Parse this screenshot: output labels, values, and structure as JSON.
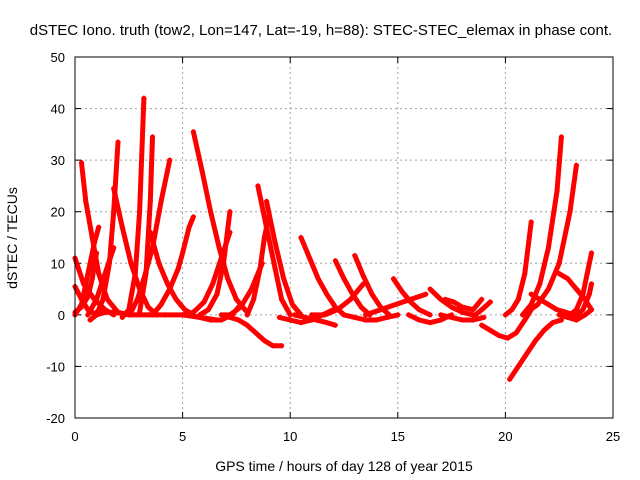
{
  "chart_data": {
    "type": "scatter",
    "title": "dSTEC Iono. truth (tow2, Lon=147, Lat=-19, h=88): STEC-STEC_elemax in phase cont.",
    "xlabel": "GPS time / hours of day 128 of year 2015",
    "ylabel": "dSTEC  / TECUs",
    "xlim": [
      0,
      25
    ],
    "ylim": [
      -20,
      50
    ],
    "xticks": [
      0,
      5,
      10,
      15,
      20,
      25
    ],
    "yticks": [
      -20,
      -10,
      0,
      10,
      20,
      30,
      40,
      50
    ],
    "xtick_labels": [
      "0",
      "5",
      "10",
      "15",
      "20",
      "25"
    ],
    "ytick_labels": [
      "-20",
      "-10",
      "0",
      "10",
      "20",
      "30",
      "40",
      "50"
    ],
    "grid": true,
    "legend": "none",
    "marker": "plus",
    "color": "#ff0000",
    "series": [
      {
        "x": [
          0.0,
          0.3,
          0.6,
          1.0,
          1.4
        ],
        "y": [
          5.5,
          3.0,
          1.0,
          0.0,
          0.5
        ]
      },
      {
        "x": [
          0.0,
          0.4,
          0.9,
          1.4,
          1.8
        ],
        "y": [
          11.0,
          6.0,
          3.0,
          1.0,
          0.0
        ]
      },
      {
        "x": [
          0.0,
          0.3,
          0.6,
          0.8,
          1.0
        ],
        "y": [
          0.5,
          1.5,
          3.5,
          7.0,
          12.0
        ]
      },
      {
        "x": [
          0.3,
          0.5,
          0.8,
          1.1,
          1.5,
          2.0,
          2.5
        ],
        "y": [
          29.5,
          22.0,
          15.0,
          8.0,
          3.0,
          0.5,
          0.0
        ]
      },
      {
        "x": [
          0.0,
          0.3,
          0.5,
          0.7,
          0.9,
          1.1
        ],
        "y": [
          0.0,
          2.0,
          6.0,
          10.0,
          14.0,
          17.0
        ]
      },
      {
        "x": [
          0.7,
          1.0,
          1.3,
          1.6,
          1.8,
          2.0
        ],
        "y": [
          -1.0,
          0.0,
          3.0,
          10.0,
          20.0,
          33.5
        ]
      },
      {
        "x": [
          0.6,
          1.0,
          1.4,
          1.8
        ],
        "y": [
          0.0,
          3.0,
          8.0,
          13.0
        ]
      },
      {
        "x": [
          1.8,
          2.2,
          2.6,
          3.0,
          3.4,
          3.8
        ],
        "y": [
          24.5,
          17.0,
          10.0,
          5.0,
          1.5,
          0.0
        ]
      },
      {
        "x": [
          1.0,
          1.8,
          2.6,
          3.4,
          4.2,
          5.0,
          5.8,
          6.6
        ],
        "y": [
          0.5,
          0.5,
          0.0,
          0.0,
          0.0,
          0.0,
          -0.5,
          -1.0
        ]
      },
      {
        "x": [
          2.2,
          2.5,
          2.8,
          3.0,
          3.2
        ],
        "y": [
          -0.5,
          1.0,
          8.0,
          20.0,
          42.0
        ]
      },
      {
        "x": [
          3.0,
          3.3,
          3.5,
          3.6
        ],
        "y": [
          0.5,
          8.0,
          22.0,
          34.5
        ]
      },
      {
        "x": [
          3.5,
          3.9,
          4.3,
          4.7,
          5.1,
          5.5
        ],
        "y": [
          16.0,
          10.0,
          6.0,
          3.0,
          1.0,
          0.0
        ]
      },
      {
        "x": [
          3.6,
          4.0,
          4.4,
          4.8,
          5.0,
          5.3,
          5.5
        ],
        "y": [
          0.0,
          2.0,
          5.0,
          9.0,
          12.0,
          17.0,
          19.0
        ]
      },
      {
        "x": [
          2.6,
          2.9,
          3.2,
          3.6,
          4.0,
          4.4
        ],
        "y": [
          0.5,
          3.0,
          7.0,
          13.0,
          22.0,
          30.0
        ]
      },
      {
        "x": [
          5.5,
          5.9,
          6.3,
          6.7,
          7.1,
          7.5,
          8.0
        ],
        "y": [
          35.5,
          28.0,
          20.0,
          13.0,
          7.0,
          3.0,
          0.5
        ]
      },
      {
        "x": [
          5.8,
          6.2,
          6.6,
          6.9,
          7.2
        ],
        "y": [
          0.0,
          1.0,
          4.0,
          10.0,
          20.0
        ]
      },
      {
        "x": [
          5.3,
          5.8,
          6.3,
          6.8,
          7.3,
          7.7
        ],
        "y": [
          0.0,
          -0.5,
          -1.0,
          -1.0,
          0.0,
          2.0
        ]
      },
      {
        "x": [
          5.0,
          5.5,
          6.0,
          6.4,
          6.8,
          7.2
        ],
        "y": [
          0.0,
          0.5,
          2.5,
          6.0,
          11.0,
          16.0
        ]
      },
      {
        "x": [
          6.8,
          7.2,
          7.7,
          8.2,
          8.7
        ],
        "y": [
          0.0,
          0.0,
          1.5,
          5.0,
          10.0
        ]
      },
      {
        "x": [
          7.2,
          7.6,
          8.0,
          8.4,
          8.8,
          9.2,
          9.6
        ],
        "y": [
          -0.5,
          -1.0,
          -2.0,
          -3.5,
          -5.0,
          -6.0,
          -6.0
        ]
      },
      {
        "x": [
          8.5,
          8.9,
          9.3,
          9.6,
          10.0
        ],
        "y": [
          25.0,
          17.0,
          9.0,
          3.0,
          0.0
        ]
      },
      {
        "x": [
          8.9,
          9.3,
          9.7,
          10.1,
          10.5
        ],
        "y": [
          22.0,
          14.0,
          7.0,
          2.0,
          0.0
        ]
      },
      {
        "x": [
          8.0,
          8.3,
          8.6,
          8.8,
          9.0
        ],
        "y": [
          0.0,
          3.0,
          9.0,
          15.0,
          19.0
        ]
      },
      {
        "x": [
          9.5,
          10.0,
          10.5,
          11.0,
          11.5,
          12.0
        ],
        "y": [
          -0.5,
          -1.0,
          -1.5,
          -1.0,
          0.0,
          1.0
        ]
      },
      {
        "x": [
          10.5,
          10.9,
          11.3,
          11.7,
          12.1,
          12.5
        ],
        "y": [
          15.0,
          11.0,
          7.0,
          4.0,
          1.5,
          0.0
        ]
      },
      {
        "x": [
          10.2,
          10.7,
          11.2,
          11.7,
          12.1
        ],
        "y": [
          0.0,
          -0.5,
          -1.0,
          -1.5,
          -2.0
        ]
      },
      {
        "x": [
          11.0,
          11.6,
          12.2,
          12.8,
          13.4
        ],
        "y": [
          0.0,
          0.0,
          1.0,
          3.0,
          6.0
        ]
      },
      {
        "x": [
          12.1,
          12.5,
          12.9,
          13.3,
          13.7
        ],
        "y": [
          10.5,
          7.0,
          4.0,
          1.5,
          0.0
        ]
      },
      {
        "x": [
          13.0,
          13.4,
          13.8,
          14.2,
          14.6
        ],
        "y": [
          11.5,
          7.5,
          4.0,
          1.5,
          0.0
        ]
      },
      {
        "x": [
          12.5,
          13.0,
          13.5,
          14.0,
          14.5,
          15.0
        ],
        "y": [
          0.0,
          -0.5,
          -1.0,
          -1.0,
          -0.5,
          0.0
        ]
      },
      {
        "x": [
          13.5,
          14.2,
          14.9,
          15.6,
          16.3
        ],
        "y": [
          0.0,
          1.0,
          2.0,
          3.0,
          4.0
        ]
      },
      {
        "x": [
          14.8,
          15.2,
          15.6,
          16.0,
          16.5
        ],
        "y": [
          7.0,
          4.5,
          2.5,
          1.0,
          0.0
        ]
      },
      {
        "x": [
          15.5,
          16.0,
          16.5,
          17.0,
          17.5
        ],
        "y": [
          0.0,
          -1.0,
          -1.5,
          -1.0,
          0.0
        ]
      },
      {
        "x": [
          16.5,
          17.0,
          17.5,
          18.0,
          18.5
        ],
        "y": [
          5.0,
          3.0,
          1.5,
          0.5,
          0.0
        ]
      },
      {
        "x": [
          17.0,
          17.5,
          18.0,
          18.5,
          19.0
        ],
        "y": [
          0.0,
          -0.5,
          -1.0,
          -1.0,
          -0.5
        ]
      },
      {
        "x": [
          17.2,
          17.6,
          18.0,
          18.5,
          18.9
        ],
        "y": [
          3.0,
          2.5,
          1.5,
          1.0,
          3.0
        ]
      },
      {
        "x": [
          18.6,
          18.9,
          19.3
        ],
        "y": [
          0.0,
          1.0,
          2.5
        ]
      },
      {
        "x": [
          18.9,
          19.3,
          19.7,
          20.1,
          20.5,
          20.9,
          21.2
        ],
        "y": [
          -2.0,
          -3.0,
          -4.0,
          -4.5,
          -3.5,
          -1.0,
          1.0
        ]
      },
      {
        "x": [
          20.0,
          20.3,
          20.6,
          20.9,
          21.2
        ],
        "y": [
          0.0,
          1.0,
          3.0,
          8.0,
          18.0
        ]
      },
      {
        "x": [
          20.2,
          20.6,
          21.0,
          21.4,
          21.8,
          22.2,
          22.6
        ],
        "y": [
          -12.5,
          -10.0,
          -7.5,
          -5.0,
          -3.0,
          -1.5,
          -1.0
        ]
      },
      {
        "x": [
          20.8,
          21.2,
          21.6,
          22.0,
          22.4,
          22.6
        ],
        "y": [
          0.0,
          2.0,
          6.0,
          13.0,
          24.0,
          34.5
        ]
      },
      {
        "x": [
          21.0,
          21.5,
          22.0,
          22.5,
          23.0,
          23.3
        ],
        "y": [
          0.5,
          2.0,
          5.0,
          10.0,
          20.0,
          29.0
        ]
      },
      {
        "x": [
          21.2,
          21.6,
          22.0,
          22.4,
          22.8,
          23.2
        ],
        "y": [
          4.0,
          3.0,
          2.0,
          1.0,
          0.5,
          0.0
        ]
      },
      {
        "x": [
          22.5,
          22.9,
          23.3,
          23.7,
          24.0
        ],
        "y": [
          8.0,
          7.0,
          5.0,
          3.0,
          1.0
        ]
      },
      {
        "x": [
          22.5,
          22.9,
          23.3,
          23.7,
          24.0
        ],
        "y": [
          0.0,
          -0.5,
          -1.0,
          0.0,
          1.0
        ]
      },
      {
        "x": [
          23.0,
          23.3,
          23.6,
          23.8,
          24.0
        ],
        "y": [
          0.0,
          1.0,
          4.0,
          8.0,
          12.0
        ]
      },
      {
        "x": [
          23.3,
          23.6,
          23.9,
          24.0
        ],
        "y": [
          0.0,
          1.0,
          4.0,
          6.0
        ]
      }
    ]
  }
}
